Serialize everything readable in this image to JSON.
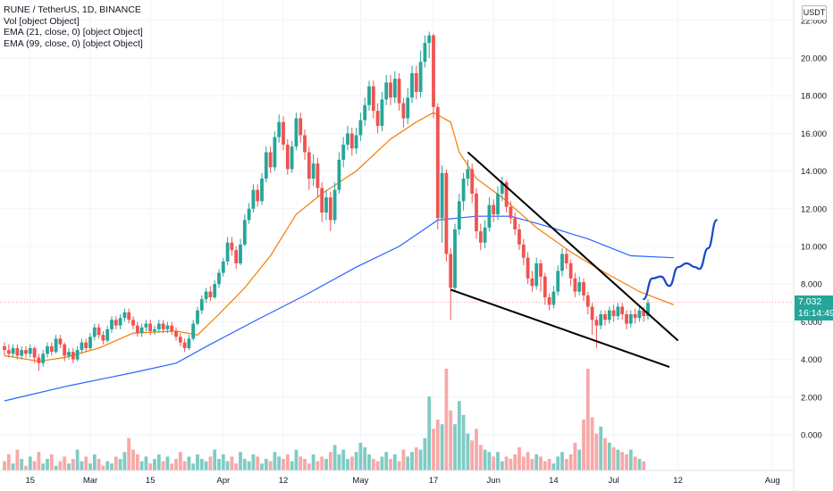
{
  "header": {
    "title": "RUNE / TetherUS, 1D, BINANCE",
    "indicators": [
      "Vol [object Object]",
      "EMA (21, close, 0) [object Object]",
      "EMA (99, close, 0) [object Object]"
    ]
  },
  "price_axis": {
    "currency": "USDT"
  },
  "last_price": {
    "value": "7.032",
    "countdown": "16:14:49"
  },
  "colors": {
    "up": "#26a69a",
    "down": "#ef5350",
    "vol_up": "#80cbc4",
    "vol_down": "#f7a9a7",
    "ema21": "#f57c00",
    "ema99": "#2962ff",
    "drawing": "#000000",
    "projection": "#1848c8"
  },
  "chart_data": {
    "type": "candlestick",
    "title": "RUNE / TetherUS, 1D, BINANCE",
    "x_ticks": [
      "15",
      "Mar",
      "15",
      "Apr",
      "12",
      "May",
      "17",
      "Jun",
      "14",
      "Jul",
      "12",
      "Aug"
    ],
    "y_ticks": [
      "22.000",
      "20.000",
      "18.000",
      "16.000",
      "14.000",
      "12.000",
      "10.000",
      "8.000",
      "6.000",
      "4.000",
      "2.000",
      "0.000"
    ],
    "ylim": [
      -1.5,
      22.8
    ],
    "last_value": 7.032,
    "grid": true,
    "candles": [
      [
        4.7,
        4.5,
        4.9,
        4.2
      ],
      [
        4.5,
        4.3,
        4.8,
        4.1
      ],
      [
        4.3,
        4.6,
        4.8,
        4.1
      ],
      [
        4.6,
        4.2,
        4.8,
        4.0
      ],
      [
        4.2,
        4.5,
        4.7,
        4.0
      ],
      [
        4.5,
        4.3,
        4.7,
        4.1
      ],
      [
        4.3,
        4.6,
        4.8,
        4.1
      ],
      [
        4.6,
        4.1,
        4.7,
        3.8
      ],
      [
        4.1,
        3.8,
        4.3,
        3.4
      ],
      [
        3.8,
        4.3,
        4.5,
        3.6
      ],
      [
        4.3,
        4.7,
        4.9,
        4.1
      ],
      [
        4.7,
        4.4,
        4.9,
        4.2
      ],
      [
        4.4,
        5.1,
        5.3,
        4.3
      ],
      [
        5.1,
        4.8,
        5.3,
        4.6
      ],
      [
        4.8,
        4.2,
        4.9,
        3.9
      ],
      [
        4.2,
        4.4,
        4.6,
        4.0
      ],
      [
        4.4,
        4.0,
        4.6,
        3.8
      ],
      [
        4.0,
        4.5,
        4.7,
        3.9
      ],
      [
        4.5,
        4.9,
        5.1,
        4.3
      ],
      [
        4.9,
        4.6,
        5.1,
        4.4
      ],
      [
        4.6,
        5.2,
        5.4,
        4.5
      ],
      [
        5.2,
        5.7,
        5.9,
        5.0
      ],
      [
        5.7,
        5.3,
        5.9,
        5.1
      ],
      [
        5.3,
        5.0,
        5.5,
        4.8
      ],
      [
        5.0,
        5.6,
        5.8,
        4.9
      ],
      [
        5.6,
        6.1,
        6.3,
        5.4
      ],
      [
        6.1,
        5.8,
        6.3,
        5.6
      ],
      [
        5.8,
        6.2,
        6.4,
        5.6
      ],
      [
        6.2,
        6.5,
        6.7,
        6.0
      ],
      [
        6.5,
        6.1,
        6.7,
        5.9
      ],
      [
        6.1,
        5.8,
        6.3,
        5.6
      ],
      [
        5.8,
        5.4,
        6.0,
        5.2
      ],
      [
        5.4,
        5.7,
        5.9,
        5.2
      ],
      [
        5.7,
        5.9,
        6.1,
        5.5
      ],
      [
        5.9,
        5.5,
        6.1,
        5.3
      ],
      [
        5.5,
        5.6,
        5.8,
        5.3
      ],
      [
        5.6,
        5.9,
        6.1,
        5.4
      ],
      [
        5.9,
        5.6,
        6.1,
        5.4
      ],
      [
        5.6,
        5.8,
        6.0,
        5.4
      ],
      [
        5.8,
        5.5,
        6.0,
        5.3
      ],
      [
        5.5,
        5.2,
        5.7,
        5.0
      ],
      [
        5.2,
        4.9,
        5.4,
        4.7
      ],
      [
        4.9,
        4.6,
        5.1,
        4.4
      ],
      [
        4.6,
        5.1,
        5.3,
        4.5
      ],
      [
        5.1,
        5.9,
        6.1,
        5.0
      ],
      [
        5.9,
        6.6,
        6.8,
        5.8
      ],
      [
        6.6,
        7.2,
        7.4,
        6.4
      ],
      [
        7.2,
        7.6,
        7.8,
        7.0
      ],
      [
        7.6,
        7.3,
        7.9,
        7.1
      ],
      [
        7.3,
        8.0,
        8.2,
        7.2
      ],
      [
        8.0,
        8.6,
        8.8,
        7.8
      ],
      [
        8.6,
        9.2,
        9.4,
        8.4
      ],
      [
        9.2,
        10.2,
        10.5,
        9.0
      ],
      [
        10.2,
        9.8,
        10.5,
        9.5
      ],
      [
        9.8,
        9.1,
        10.0,
        8.8
      ],
      [
        9.1,
        10.1,
        10.4,
        9.0
      ],
      [
        10.1,
        11.4,
        11.7,
        10.0
      ],
      [
        11.4,
        12.0,
        12.3,
        11.2
      ],
      [
        12.0,
        13.0,
        13.3,
        11.8
      ],
      [
        13.0,
        12.4,
        13.3,
        12.1
      ],
      [
        12.4,
        13.6,
        13.9,
        12.2
      ],
      [
        13.6,
        15.0,
        15.3,
        13.4
      ],
      [
        15.0,
        14.2,
        15.3,
        13.9
      ],
      [
        14.2,
        15.8,
        16.1,
        14.0
      ],
      [
        15.8,
        16.6,
        17.0,
        15.5
      ],
      [
        16.6,
        15.4,
        16.9,
        15.1
      ],
      [
        15.4,
        14.1,
        15.7,
        13.8
      ],
      [
        14.1,
        15.3,
        15.6,
        13.9
      ],
      [
        15.3,
        16.8,
        17.1,
        15.1
      ],
      [
        16.8,
        15.9,
        17.1,
        15.5
      ],
      [
        15.9,
        15.0,
        16.2,
        14.6
      ],
      [
        15.0,
        13.6,
        15.3,
        13.0
      ],
      [
        13.6,
        14.4,
        14.9,
        13.2
      ],
      [
        14.4,
        13.1,
        14.7,
        12.6
      ],
      [
        13.1,
        11.8,
        13.4,
        11.3
      ],
      [
        11.8,
        12.6,
        13.0,
        11.4
      ],
      [
        12.6,
        11.4,
        12.9,
        10.8
      ],
      [
        11.4,
        13.0,
        13.4,
        11.2
      ],
      [
        13.0,
        14.6,
        15.0,
        12.8
      ],
      [
        14.6,
        15.4,
        15.8,
        14.2
      ],
      [
        15.4,
        16.0,
        16.4,
        15.1
      ],
      [
        16.0,
        15.2,
        16.3,
        14.8
      ],
      [
        15.2,
        15.9,
        16.3,
        14.9
      ],
      [
        15.9,
        16.7,
        17.1,
        15.6
      ],
      [
        16.7,
        17.5,
        17.9,
        16.4
      ],
      [
        17.5,
        18.5,
        18.8,
        17.2
      ],
      [
        18.5,
        17.2,
        18.8,
        16.8
      ],
      [
        17.2,
        16.4,
        17.6,
        16.0
      ],
      [
        16.4,
        17.8,
        18.2,
        16.1
      ],
      [
        17.8,
        18.7,
        19.1,
        17.5
      ],
      [
        18.7,
        17.9,
        19.1,
        17.5
      ],
      [
        17.9,
        18.9,
        19.3,
        17.6
      ],
      [
        18.9,
        17.6,
        19.2,
        17.2
      ],
      [
        17.6,
        16.8,
        17.9,
        16.3
      ],
      [
        16.8,
        17.9,
        18.4,
        16.5
      ],
      [
        17.9,
        19.2,
        19.6,
        17.6
      ],
      [
        19.2,
        18.2,
        19.6,
        17.8
      ],
      [
        18.2,
        19.8,
        20.4,
        17.9
      ],
      [
        19.8,
        20.8,
        21.2,
        19.5
      ],
      [
        20.8,
        21.2,
        21.4,
        20.0
      ],
      [
        21.2,
        17.4,
        21.3,
        16.8
      ],
      [
        17.4,
        11.5,
        17.6,
        10.9
      ],
      [
        11.5,
        13.9,
        14.3,
        10.2
      ],
      [
        13.9,
        9.6,
        14.1,
        9.2
      ],
      [
        9.6,
        7.8,
        9.9,
        6.1
      ],
      [
        7.8,
        10.9,
        11.2,
        7.6
      ],
      [
        10.9,
        12.4,
        12.8,
        10.6
      ],
      [
        12.4,
        13.6,
        13.9,
        11.9
      ],
      [
        13.6,
        14.1,
        14.6,
        13.2
      ],
      [
        14.1,
        12.8,
        14.4,
        12.3
      ],
      [
        12.8,
        10.8,
        13.1,
        10.4
      ],
      [
        10.8,
        10.2,
        11.2,
        9.8
      ],
      [
        10.2,
        11.0,
        11.4,
        9.9
      ],
      [
        11.0,
        12.2,
        12.6,
        10.8
      ],
      [
        12.2,
        11.7,
        12.5,
        11.3
      ],
      [
        11.7,
        12.8,
        13.2,
        11.4
      ],
      [
        12.8,
        13.4,
        13.7,
        12.4
      ],
      [
        13.4,
        12.1,
        13.5,
        11.8
      ],
      [
        12.1,
        11.5,
        12.4,
        11.2
      ],
      [
        11.5,
        10.9,
        11.8,
        10.6
      ],
      [
        10.9,
        10.1,
        11.2,
        9.8
      ],
      [
        10.1,
        9.4,
        10.4,
        9.0
      ],
      [
        9.4,
        8.3,
        9.7,
        8.0
      ],
      [
        8.3,
        7.9,
        8.7,
        7.6
      ],
      [
        7.9,
        9.1,
        9.4,
        7.7
      ],
      [
        9.1,
        8.4,
        9.3,
        7.6
      ],
      [
        8.4,
        7.3,
        8.6,
        6.9
      ],
      [
        7.3,
        6.9,
        7.5,
        6.6
      ],
      [
        6.9,
        7.6,
        7.9,
        6.7
      ],
      [
        7.6,
        8.7,
        9.0,
        7.4
      ],
      [
        8.7,
        9.6,
        9.9,
        8.4
      ],
      [
        9.6,
        9.1,
        9.9,
        8.8
      ],
      [
        9.1,
        8.3,
        9.3,
        7.9
      ],
      [
        8.3,
        7.6,
        8.6,
        7.3
      ],
      [
        7.6,
        8.1,
        8.4,
        7.4
      ],
      [
        8.1,
        7.4,
        8.3,
        7.1
      ],
      [
        7.4,
        6.8,
        7.6,
        6.4
      ],
      [
        6.8,
        6.1,
        7.0,
        5.3
      ],
      [
        6.1,
        5.8,
        6.3,
        4.6
      ],
      [
        5.8,
        6.4,
        6.6,
        5.6
      ],
      [
        6.4,
        6.1,
        6.6,
        5.8
      ],
      [
        6.1,
        6.6,
        6.8,
        5.9
      ],
      [
        6.6,
        6.3,
        6.9,
        6.0
      ],
      [
        6.3,
        6.8,
        7.0,
        6.1
      ],
      [
        6.8,
        6.4,
        7.0,
        6.1
      ],
      [
        6.4,
        5.9,
        6.6,
        5.6
      ],
      [
        5.9,
        6.4,
        6.6,
        5.7
      ],
      [
        6.4,
        6.2,
        6.7,
        5.9
      ],
      [
        6.2,
        6.6,
        6.8,
        6.0
      ],
      [
        6.6,
        6.3,
        6.8,
        6.0
      ],
      [
        6.3,
        7.0,
        7.2,
        6.1
      ]
    ],
    "volume": [
      0.4,
      0.7,
      0.3,
      0.9,
      0.5,
      0.2,
      0.6,
      0.4,
      0.8,
      0.3,
      0.5,
      0.7,
      0.2,
      0.4,
      0.6,
      0.3,
      0.5,
      0.9,
      0.4,
      0.6,
      0.3,
      0.7,
      0.5,
      0.2,
      0.4,
      0.3,
      0.6,
      0.5,
      0.8,
      1.4,
      0.9,
      0.7,
      0.4,
      0.6,
      0.3,
      0.5,
      0.7,
      0.4,
      0.6,
      0.3,
      0.5,
      0.8,
      0.4,
      0.6,
      0.3,
      0.7,
      0.5,
      0.4,
      0.6,
      0.9,
      0.5,
      0.7,
      0.4,
      0.6,
      0.3,
      0.8,
      0.5,
      0.4,
      0.7,
      0.6,
      0.3,
      0.5,
      0.4,
      0.8,
      0.6,
      0.5,
      0.7,
      0.4,
      0.9,
      0.6,
      0.5,
      0.3,
      0.7,
      0.4,
      0.6,
      0.5,
      0.8,
      1.1,
      0.7,
      0.9,
      0.5,
      0.6,
      0.8,
      1.2,
      1.0,
      0.7,
      0.5,
      0.4,
      0.6,
      0.8,
      0.5,
      0.7,
      0.4,
      0.9,
      0.6,
      0.8,
      1.0,
      0.9,
      1.4,
      3.2,
      1.8,
      2.2,
      2.0,
      4.4,
      2.6,
      2.0,
      3.0,
      2.4,
      1.6,
      1.3,
      1.8,
      1.1,
      0.9,
      0.8,
      0.6,
      0.8,
      0.4,
      0.6,
      0.5,
      0.7,
      1.0,
      0.6,
      0.8,
      0.5,
      0.7,
      0.6,
      0.4,
      0.5,
      0.3,
      0.6,
      0.8,
      0.5,
      0.7,
      1.2,
      0.9,
      2.2,
      4.4,
      2.3,
      1.6,
      1.9,
      1.4,
      1.2,
      1.0,
      0.9,
      0.8,
      0.7,
      0.9,
      0.6,
      0.5,
      0.4
    ],
    "ema21": [
      [
        0,
        4.2
      ],
      [
        8,
        3.9
      ],
      [
        14,
        4.1
      ],
      [
        22,
        4.6
      ],
      [
        30,
        5.4
      ],
      [
        40,
        5.5
      ],
      [
        45,
        5.3
      ],
      [
        50,
        6.4
      ],
      [
        56,
        7.8
      ],
      [
        62,
        9.5
      ],
      [
        68,
        11.7
      ],
      [
        74,
        12.8
      ],
      [
        82,
        14.0
      ],
      [
        90,
        15.7
      ],
      [
        96,
        16.6
      ],
      [
        100,
        17.1
      ],
      [
        104,
        16.6
      ],
      [
        106,
        15.0
      ],
      [
        110,
        13.6
      ],
      [
        116,
        12.6
      ],
      [
        124,
        11.0
      ],
      [
        132,
        9.7
      ],
      [
        140,
        8.6
      ],
      [
        148,
        7.6
      ],
      [
        156,
        6.9
      ]
    ],
    "ema99": [
      [
        0,
        1.8
      ],
      [
        15,
        2.6
      ],
      [
        30,
        3.3
      ],
      [
        40,
        3.8
      ],
      [
        48,
        4.8
      ],
      [
        58,
        6.0
      ],
      [
        70,
        7.4
      ],
      [
        82,
        8.9
      ],
      [
        92,
        10.0
      ],
      [
        101,
        11.4
      ],
      [
        110,
        11.6
      ],
      [
        118,
        11.6
      ],
      [
        126,
        11.1
      ],
      [
        136,
        10.4
      ],
      [
        146,
        9.5
      ],
      [
        156,
        9.4
      ]
    ],
    "drawings": {
      "upper_line": [
        [
          108,
          15.0
        ],
        [
          157,
          5.0
        ]
      ],
      "lower_line": [
        [
          104,
          7.7
        ],
        [
          155,
          3.6
        ]
      ],
      "projection": [
        [
          149,
          7.2
        ],
        [
          151,
          8.3
        ],
        [
          153,
          8.4
        ],
        [
          155,
          7.9
        ],
        [
          157,
          8.9
        ],
        [
          159,
          9.1
        ],
        [
          161,
          8.9
        ],
        [
          162,
          8.8
        ],
        [
          164,
          9.9
        ],
        [
          166,
          11.4
        ]
      ]
    }
  }
}
